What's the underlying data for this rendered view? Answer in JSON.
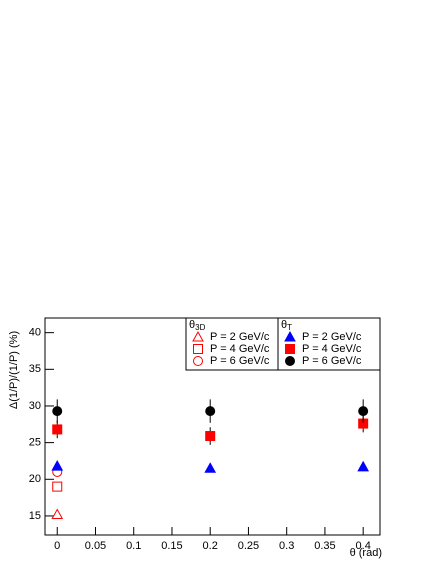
{
  "chart_data": {
    "type": "scatter",
    "x_label": "θ (rad)",
    "y_label": "Δ(1/P)/(1/P) (%)",
    "xlim": [
      -0.016,
      0.422
    ],
    "ylim": [
      12.4,
      42
    ],
    "xticks": [
      0,
      0.05,
      0.1,
      0.15,
      0.2,
      0.25,
      0.3,
      0.35,
      0.4
    ],
    "yticks": [
      15,
      20,
      25,
      30,
      35,
      40
    ],
    "legends": [
      {
        "title": "θ",
        "subscript": "3D"
      },
      {
        "title": "θ",
        "subscript": "T"
      }
    ],
    "series": [
      {
        "name": "P = 2 GeV/c",
        "legend": 0,
        "marker": "triangle",
        "filled": false,
        "color": "#ff0000",
        "x": [
          0
        ],
        "values": [
          15.2
        ]
      },
      {
        "name": "P = 4 GeV/c",
        "legend": 0,
        "marker": "square",
        "filled": false,
        "color": "#ff0000",
        "x": [
          0
        ],
        "values": [
          19
        ]
      },
      {
        "name": "P = 6 GeV/c",
        "legend": 0,
        "marker": "circle",
        "filled": false,
        "color": "#ff0000",
        "x": [
          0
        ],
        "values": [
          21
        ]
      },
      {
        "name": "P = 2 GeV/c",
        "legend": 1,
        "marker": "triangle",
        "filled": true,
        "color": "#0000ff",
        "x": [
          0,
          0.2,
          0.4
        ],
        "values": [
          21.8,
          21.5,
          21.7
        ],
        "errors": [
          0.5,
          0.4,
          0.5
        ]
      },
      {
        "name": "P = 4 GeV/c",
        "legend": 1,
        "marker": "square",
        "filled": true,
        "color": "#ff0000",
        "x": [
          0,
          0.2,
          0.4
        ],
        "values": [
          26.8,
          25.9,
          27.6
        ],
        "errors": [
          1.2,
          1.2,
          1.2
        ]
      },
      {
        "name": "P = 6 GeV/c",
        "legend": 1,
        "marker": "circle",
        "filled": true,
        "color": "#000000",
        "x": [
          0,
          0.2,
          0.4
        ],
        "values": [
          29.3,
          29.3,
          29.3
        ],
        "errors": [
          1.6,
          1.6,
          1.6
        ]
      }
    ]
  }
}
